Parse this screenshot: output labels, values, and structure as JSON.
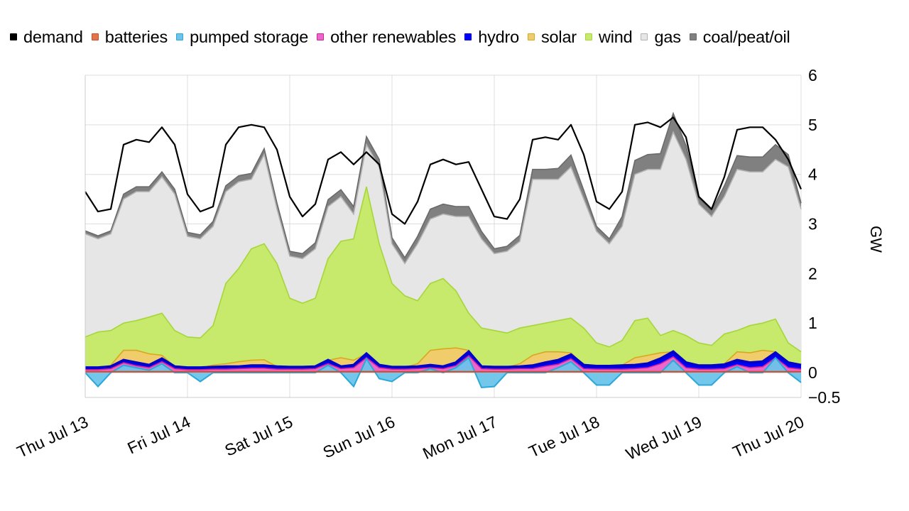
{
  "chart_data": {
    "type": "area",
    "x_ticks": [
      "Thu Jul 13",
      "Fri Jul 14",
      "Sat Jul 15",
      "Sun Jul 16",
      "Mon Jul 17",
      "Tue Jul 18",
      "Wed Jul 19",
      "Thu Jul 20"
    ],
    "y_ticks": [
      6,
      5,
      4,
      3,
      2,
      1,
      0,
      -0.5
    ],
    "y_ticks_label": [
      "6",
      "5",
      "4",
      "3",
      "2",
      "1",
      "0",
      "−0.5"
    ],
    "ylim": [
      -0.5,
      6
    ],
    "ylabel": "GW",
    "grid": true,
    "legend_position": "top",
    "x_step_hours": 6,
    "legend": [
      {
        "key": "demand",
        "label": "demand",
        "color": "#000000",
        "border": "#000000"
      },
      {
        "key": "batteries",
        "label": "batteries",
        "color": "#e8734a",
        "border": "#c95020"
      },
      {
        "key": "pumped",
        "label": "pumped storage",
        "color": "#6cc4ea",
        "border": "#2ba7d8"
      },
      {
        "key": "other",
        "label": "other renewables",
        "color": "#ee66cc",
        "border": "#cc2299"
      },
      {
        "key": "hydro",
        "label": "hydro",
        "color": "#0000ff",
        "border": "#0000cc"
      },
      {
        "key": "solar",
        "label": "solar",
        "color": "#f0cc6a",
        "border": "#d6a820"
      },
      {
        "key": "wind",
        "label": "wind",
        "color": "#c7e96c",
        "border": "#a5d63a"
      },
      {
        "key": "gas",
        "label": "gas",
        "color": "#e6e6e6",
        "border": "#b3b3b3"
      },
      {
        "key": "coal",
        "label": "coal/peat/oil",
        "color": "#808080",
        "border": "#6a6a6a"
      }
    ],
    "series": {
      "demand": [
        3.65,
        3.25,
        3.3,
        4.6,
        4.7,
        4.65,
        4.95,
        4.6,
        3.6,
        3.25,
        3.35,
        4.6,
        4.95,
        5.0,
        4.95,
        4.5,
        3.55,
        3.15,
        3.4,
        4.3,
        4.45,
        4.2,
        4.45,
        4.2,
        3.2,
        3.0,
        3.45,
        4.2,
        4.3,
        4.2,
        4.25,
        3.7,
        3.15,
        3.1,
        3.5,
        4.7,
        4.75,
        4.7,
        5.0,
        4.4,
        3.45,
        3.3,
        3.65,
        5.0,
        5.05,
        4.95,
        5.15,
        4.75,
        3.55,
        3.3,
        3.95,
        4.9,
        4.95,
        4.95,
        4.7,
        4.3,
        3.7
      ],
      "coal": [
        0.06,
        0.06,
        0.06,
        0.1,
        0.1,
        0.1,
        0.1,
        0.1,
        0.08,
        0.08,
        0.1,
        0.12,
        0.12,
        0.12,
        0.12,
        0.12,
        0.1,
        0.1,
        0.12,
        0.14,
        0.14,
        0.15,
        0.16,
        0.15,
        0.12,
        0.12,
        0.15,
        0.2,
        0.2,
        0.2,
        0.2,
        0.15,
        0.1,
        0.1,
        0.12,
        0.2,
        0.2,
        0.22,
        0.24,
        0.18,
        0.1,
        0.1,
        0.2,
        0.28,
        0.3,
        0.32,
        0.38,
        0.28,
        0.12,
        0.12,
        0.22,
        0.28,
        0.3,
        0.3,
        0.3,
        0.25,
        0.12
      ],
      "gas_top": [
        2.8,
        2.7,
        2.8,
        3.5,
        3.65,
        3.65,
        3.95,
        3.6,
        2.75,
        2.7,
        2.95,
        3.65,
        3.85,
        3.9,
        4.4,
        3.3,
        2.35,
        2.3,
        2.5,
        3.35,
        3.55,
        3.2,
        4.6,
        4.15,
        2.6,
        2.2,
        2.6,
        3.1,
        3.2,
        3.15,
        3.15,
        2.7,
        2.4,
        2.45,
        2.65,
        3.9,
        3.9,
        3.9,
        4.15,
        3.5,
        2.85,
        2.6,
        2.95,
        4.0,
        4.1,
        4.1,
        4.85,
        4.3,
        3.4,
        3.15,
        3.55,
        4.1,
        4.05,
        4.05,
        4.3,
        4.15,
        3.3
      ],
      "wind_top": [
        0.72,
        0.82,
        0.85,
        1.0,
        1.05,
        1.12,
        1.2,
        0.85,
        0.72,
        0.7,
        0.95,
        1.8,
        2.1,
        2.5,
        2.6,
        2.2,
        1.5,
        1.4,
        1.5,
        2.3,
        2.65,
        2.7,
        3.75,
        2.6,
        1.8,
        1.55,
        1.45,
        1.8,
        1.9,
        1.65,
        1.2,
        0.9,
        0.85,
        0.8,
        0.9,
        0.95,
        1.0,
        1.05,
        1.1,
        0.9,
        0.6,
        0.52,
        0.65,
        1.05,
        1.1,
        0.75,
        0.85,
        0.75,
        0.6,
        0.55,
        0.78,
        0.85,
        0.95,
        1.0,
        1.08,
        0.6,
        0.42
      ],
      "solar_top": [
        0.1,
        0.1,
        0.15,
        0.45,
        0.45,
        0.38,
        0.35,
        0.12,
        0.1,
        0.1,
        0.15,
        0.18,
        0.22,
        0.25,
        0.26,
        0.12,
        0.1,
        0.1,
        0.12,
        0.22,
        0.3,
        0.25,
        0.3,
        0.12,
        0.1,
        0.1,
        0.18,
        0.45,
        0.48,
        0.5,
        0.45,
        0.12,
        0.1,
        0.1,
        0.18,
        0.35,
        0.42,
        0.42,
        0.4,
        0.14,
        0.12,
        0.12,
        0.15,
        0.3,
        0.35,
        0.4,
        0.42,
        0.18,
        0.14,
        0.14,
        0.18,
        0.42,
        0.4,
        0.45,
        0.42,
        0.18,
        0.14
      ],
      "hydro_top": [
        0.1,
        0.1,
        0.12,
        0.25,
        0.2,
        0.15,
        0.28,
        0.12,
        0.1,
        0.1,
        0.11,
        0.12,
        0.12,
        0.14,
        0.14,
        0.12,
        0.11,
        0.11,
        0.12,
        0.25,
        0.12,
        0.15,
        0.38,
        0.15,
        0.11,
        0.11,
        0.12,
        0.15,
        0.12,
        0.2,
        0.42,
        0.12,
        0.11,
        0.11,
        0.12,
        0.14,
        0.2,
        0.25,
        0.36,
        0.15,
        0.13,
        0.13,
        0.14,
        0.15,
        0.18,
        0.28,
        0.42,
        0.2,
        0.14,
        0.14,
        0.16,
        0.25,
        0.2,
        0.22,
        0.4,
        0.2,
        0.15
      ],
      "other_top": [
        0.06,
        0.06,
        0.08,
        0.2,
        0.14,
        0.1,
        0.22,
        0.08,
        0.06,
        0.06,
        0.07,
        0.07,
        0.08,
        0.09,
        0.09,
        0.07,
        0.07,
        0.07,
        0.08,
        0.18,
        0.08,
        0.1,
        0.3,
        0.1,
        0.07,
        0.07,
        0.08,
        0.1,
        0.08,
        0.14,
        0.34,
        0.08,
        0.07,
        0.07,
        0.08,
        0.08,
        0.13,
        0.17,
        0.28,
        0.08,
        0.07,
        0.07,
        0.07,
        0.08,
        0.1,
        0.18,
        0.32,
        0.1,
        0.07,
        0.07,
        0.08,
        0.16,
        0.1,
        0.12,
        0.3,
        0.1,
        0.07
      ],
      "pumped": [
        0.0,
        -0.28,
        0.0,
        0.15,
        0.1,
        0.05,
        0.18,
        0.0,
        0.0,
        -0.18,
        0.0,
        0.0,
        0.0,
        0.0,
        0.0,
        0.0,
        0.0,
        0.0,
        0.0,
        0.15,
        0.0,
        -0.28,
        0.28,
        -0.12,
        -0.18,
        0.0,
        0.0,
        0.08,
        0.0,
        0.1,
        0.3,
        -0.3,
        -0.28,
        0.0,
        0.0,
        0.0,
        0.0,
        0.1,
        0.22,
        0.0,
        -0.25,
        -0.25,
        0.0,
        0.0,
        0.0,
        0.0,
        0.25,
        0.0,
        -0.25,
        -0.25,
        0.0,
        0.12,
        0.0,
        0.0,
        0.3,
        0.0,
        -0.2
      ]
    }
  }
}
